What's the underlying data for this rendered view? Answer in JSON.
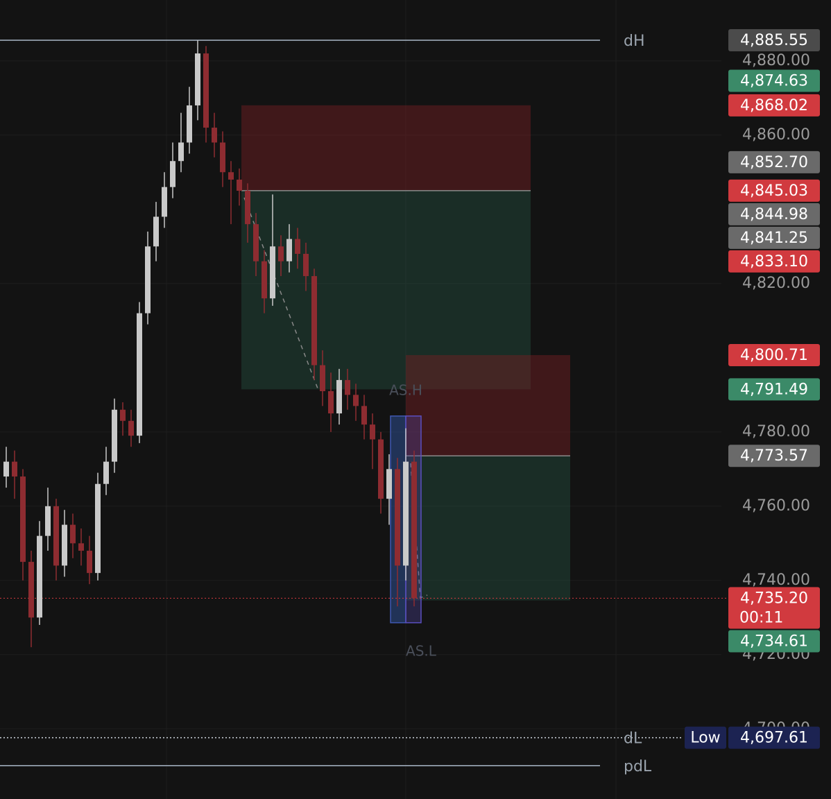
{
  "chart_data": {
    "type": "candlestick",
    "ylim": [
      4681.1,
      4896.4
    ],
    "yticks": [
      {
        "value": 4880,
        "label": "4,880.00"
      },
      {
        "value": 4860,
        "label": "4,860.00"
      },
      {
        "value": 4820,
        "label": "4,820.00"
      },
      {
        "value": 4780,
        "label": "4,780.00"
      },
      {
        "value": 4760,
        "label": "4,760.00"
      },
      {
        "value": 4740,
        "label": "4,740.00"
      },
      {
        "value": 4720,
        "label": "4,720.00"
      },
      {
        "value": 4700,
        "label": "4,700.00"
      }
    ],
    "grid": true,
    "up_color": "#c9c9c9",
    "down_color": "#8e2c31",
    "open": [
      4768,
      4772,
      4768,
      4745,
      4730,
      4752,
      4760,
      4744,
      4755,
      4750,
      4748,
      4742,
      4766,
      4772,
      4786,
      4783,
      4779,
      4812,
      4830,
      4838,
      4846,
      4853,
      4858,
      4868,
      4882,
      4862,
      4858,
      4850,
      4848,
      4845,
      4836,
      4826,
      4816,
      4830,
      4826,
      4832,
      4828,
      4822,
      4798,
      4791,
      4785,
      4794,
      4790,
      4787,
      4782,
      4778,
      4762,
      4770,
      4744,
      4772
    ],
    "high": [
      4776,
      4775,
      4770,
      4748,
      4756,
      4765,
      4762,
      4759,
      4758,
      4754,
      4752,
      4769,
      4776,
      4789,
      4788,
      4786,
      4815,
      4834,
      4842,
      4850,
      4858,
      4866,
      4873,
      4885.55,
      4884,
      4866,
      4861,
      4853,
      4851,
      4847,
      4839,
      4829,
      4844,
      4833,
      4836,
      4835,
      4831,
      4824,
      4802,
      4796,
      4797,
      4797,
      4793,
      4790,
      4785,
      4780,
      4774,
      4773,
      4781,
      4775
    ],
    "low": [
      4765,
      4762,
      4740,
      4722,
      4728,
      4748,
      4740,
      4741,
      4746,
      4744,
      4739,
      4740,
      4763,
      4769,
      4779,
      4776,
      4777,
      4809,
      4826,
      4835,
      4843,
      4850,
      4855,
      4864,
      4858,
      4854,
      4846,
      4836,
      4841,
      4831,
      4822,
      4812,
      4814,
      4822,
      4823,
      4824,
      4818,
      4794,
      4787,
      4780,
      4782,
      4786,
      4783,
      4778,
      4770,
      4758,
      4755,
      4733,
      4740,
      4733
    ],
    "close": [
      4772,
      4768,
      4745,
      4730,
      4752,
      4760,
      4744,
      4755,
      4750,
      4748,
      4742,
      4766,
      4772,
      4786,
      4783,
      4779,
      4812,
      4830,
      4838,
      4846,
      4853,
      4858,
      4868,
      4882,
      4862,
      4858,
      4850,
      4848,
      4845,
      4836,
      4826,
      4816,
      4830,
      4826,
      4832,
      4828,
      4822,
      4798,
      4791,
      4785,
      4794,
      4790,
      4787,
      4782,
      4778,
      4762,
      4770,
      4744,
      4772,
      4735.2
    ],
    "levels": [
      {
        "name": "dH",
        "value": 4885.55,
        "style": "solid"
      },
      {
        "name": "dL",
        "value": 4697.61,
        "style": "dotted"
      },
      {
        "name": "pdL",
        "value": 4690.1,
        "style": "solid"
      }
    ],
    "positions": [
      {
        "stop": 4868.02,
        "entry": 4845.03,
        "target": 4791.49
      },
      {
        "stop": 4800.71,
        "entry": 4773.57,
        "target": 4734.61
      }
    ],
    "session": {
      "high": 4784.3,
      "low": 4728.6,
      "high_label": "AS.H",
      "low_label": "AS.L"
    },
    "price_tags": [
      {
        "value": 4885.55,
        "label": "4,885.55",
        "color": "#4b4b4b"
      },
      {
        "value": 4874.63,
        "label": "4,874.63",
        "color": "#3b8a68"
      },
      {
        "value": 4868.02,
        "label": "4,868.02",
        "color": "#d13a3f"
      },
      {
        "value": 4852.7,
        "label": "4,852.70",
        "color": "#6a6a6a"
      },
      {
        "value": 4845.03,
        "label": "4,845.03",
        "color": "#d13a3f"
      },
      {
        "value": 4844.98,
        "label": "4,844.98",
        "color": "#6a6a6a"
      },
      {
        "value": 4841.25,
        "label": "4,841.25",
        "color": "#6a6a6a"
      },
      {
        "value": 4833.1,
        "label": "4,833.10",
        "color": "#d13a3f"
      },
      {
        "value": 4800.71,
        "label": "4,800.71",
        "color": "#d13a3f"
      },
      {
        "value": 4791.49,
        "label": "4,791.49",
        "color": "#3b8a68"
      },
      {
        "value": 4773.57,
        "label": "4,773.57",
        "color": "#6a6a6a"
      },
      {
        "value": 4735.2,
        "label": "4,735.20",
        "timer": "00:11",
        "color": "#d13a3f"
      },
      {
        "value": 4734.61,
        "label": "4,734.61",
        "color": "#3b8a68"
      },
      {
        "value": 4697.61,
        "label": "4,697.61",
        "prefix": "Low",
        "color": "#1c2352"
      }
    ]
  }
}
